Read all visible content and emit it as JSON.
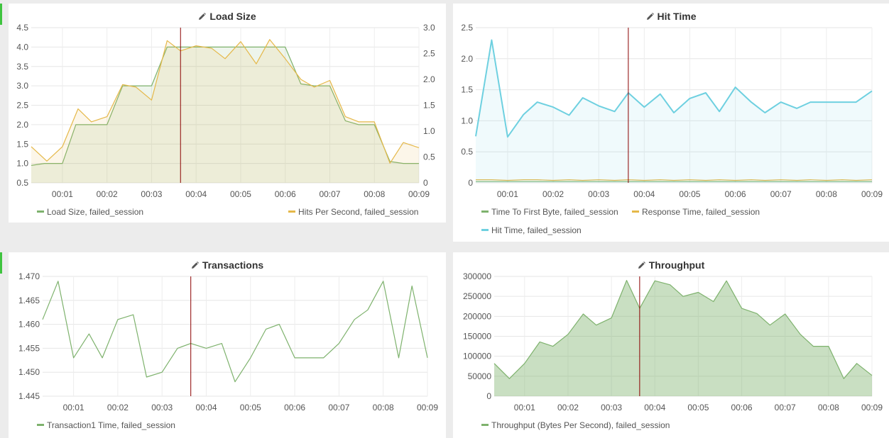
{
  "colors": {
    "green": "#7eb26d",
    "yellow": "#e5b849",
    "cyan": "#6ed0e0",
    "marker": "#8b0000"
  },
  "panels": {
    "load_size": {
      "title": "Load Size",
      "icon": "pencil-icon"
    },
    "hit_time": {
      "title": "Hit Time",
      "icon": "pencil-icon"
    },
    "transactions": {
      "title": "Transactions",
      "icon": "pencil-icon"
    },
    "throughput": {
      "title": "Throughput",
      "icon": "pencil-icon"
    }
  },
  "chart_data": [
    {
      "id": "load_size",
      "type": "area",
      "title": "Load Size",
      "x_ticks": [
        "00:01",
        "00:02",
        "00:03",
        "00:04",
        "00:05",
        "00:06",
        "00:07",
        "00:08",
        "00:09"
      ],
      "x_range": [
        0.3,
        9.0
      ],
      "cursor_x": 3.65,
      "y_left": {
        "range": [
          0.5,
          4.5
        ],
        "ticks": [
          "0.5",
          "1.0",
          "1.5",
          "2.0",
          "2.5",
          "3.0",
          "3.5",
          "4.0",
          "4.5"
        ]
      },
      "y_right": {
        "range": [
          0,
          3.0
        ],
        "ticks": [
          "0",
          "0.5",
          "1.0",
          "1.5",
          "2.0",
          "2.5",
          "3.0"
        ]
      },
      "series": [
        {
          "name": "Load Size, failed_session",
          "axis": "left",
          "color": "green",
          "fill": true,
          "x": [
            0.3,
            0.6,
            1.0,
            1.3,
            1.65,
            2.0,
            2.35,
            2.65,
            3.0,
            3.35,
            3.65,
            4.0,
            4.35,
            4.65,
            5.0,
            5.35,
            5.65,
            6.0,
            6.35,
            6.65,
            7.0,
            7.35,
            7.65,
            8.0,
            8.35,
            8.65,
            9.0
          ],
          "values": [
            0.95,
            1.0,
            1.0,
            2.0,
            2.0,
            2.0,
            3.0,
            3.0,
            3.0,
            4.0,
            4.0,
            4.0,
            4.0,
            4.0,
            4.0,
            4.0,
            4.0,
            4.0,
            3.05,
            3.0,
            3.0,
            2.1,
            2.0,
            2.0,
            1.05,
            1.0,
            1.0
          ]
        },
        {
          "name": "Hits Per Second, failed_session",
          "axis": "right",
          "color": "yellow",
          "fill": true,
          "x": [
            0.3,
            0.65,
            1.0,
            1.35,
            1.65,
            2.0,
            2.35,
            2.65,
            3.0,
            3.35,
            3.65,
            4.0,
            4.35,
            4.65,
            5.0,
            5.35,
            5.65,
            6.0,
            6.35,
            6.65,
            7.0,
            7.35,
            7.65,
            8.0,
            8.35,
            8.65,
            9.0
          ],
          "values": [
            0.7,
            0.42,
            0.7,
            1.43,
            1.18,
            1.28,
            1.9,
            1.85,
            1.6,
            2.75,
            2.55,
            2.65,
            2.6,
            2.4,
            2.73,
            2.3,
            2.77,
            2.4,
            2.0,
            1.85,
            1.98,
            1.28,
            1.18,
            1.18,
            0.38,
            0.78,
            0.68
          ]
        }
      ]
    },
    {
      "id": "hit_time",
      "type": "area",
      "title": "Hit Time",
      "x_ticks": [
        "00:01",
        "00:02",
        "00:03",
        "00:04",
        "00:05",
        "00:06",
        "00:07",
        "00:08",
        "00:09"
      ],
      "x_range": [
        0.3,
        9.0
      ],
      "cursor_x": 3.65,
      "y_left": {
        "range": [
          0,
          2.5
        ],
        "ticks": [
          "0",
          "0.5",
          "1.0",
          "1.5",
          "2.0",
          "2.5"
        ]
      },
      "series": [
        {
          "name": "Time To First Byte, failed_session",
          "axis": "left",
          "color": "green",
          "fill": false,
          "x": [
            0.3,
            9.0
          ],
          "values": [
            0.02,
            0.02
          ]
        },
        {
          "name": "Response Time, failed_session",
          "axis": "left",
          "color": "yellow",
          "fill": false,
          "x": [
            0.3,
            0.65,
            1.0,
            1.35,
            1.65,
            2.0,
            2.35,
            2.65,
            3.0,
            3.35,
            3.65,
            4.0,
            4.35,
            4.65,
            5.0,
            5.35,
            5.65,
            6.0,
            6.35,
            6.65,
            7.0,
            7.35,
            7.65,
            8.0,
            8.35,
            8.65,
            9.0
          ],
          "values": [
            0.05,
            0.05,
            0.04,
            0.05,
            0.05,
            0.04,
            0.05,
            0.04,
            0.05,
            0.04,
            0.05,
            0.04,
            0.05,
            0.04,
            0.05,
            0.04,
            0.05,
            0.04,
            0.05,
            0.04,
            0.05,
            0.04,
            0.05,
            0.04,
            0.05,
            0.04,
            0.05
          ]
        },
        {
          "name": "Hit Time, failed_session",
          "axis": "left",
          "color": "cyan",
          "fill": true,
          "x": [
            0.3,
            0.65,
            1.0,
            1.35,
            1.65,
            2.0,
            2.35,
            2.65,
            3.0,
            3.35,
            3.65,
            4.0,
            4.35,
            4.65,
            5.0,
            5.35,
            5.65,
            6.0,
            6.35,
            6.65,
            7.0,
            7.35,
            7.65,
            8.0,
            8.35,
            8.65,
            9.0
          ],
          "values": [
            0.75,
            2.3,
            0.74,
            1.1,
            1.3,
            1.22,
            1.09,
            1.37,
            1.24,
            1.15,
            1.45,
            1.22,
            1.43,
            1.13,
            1.36,
            1.45,
            1.15,
            1.54,
            1.3,
            1.13,
            1.3,
            1.2,
            1.3,
            1.3,
            1.3,
            1.3,
            1.48
          ]
        }
      ]
    },
    {
      "id": "transactions",
      "type": "line",
      "title": "Transactions",
      "x_ticks": [
        "00:01",
        "00:02",
        "00:03",
        "00:04",
        "00:05",
        "00:06",
        "00:07",
        "00:08",
        "00:09"
      ],
      "x_range": [
        0.3,
        9.0
      ],
      "cursor_x": 3.65,
      "y_left": {
        "range": [
          1.445,
          1.47
        ],
        "ticks": [
          "1.445",
          "1.450",
          "1.455",
          "1.460",
          "1.465",
          "1.470"
        ]
      },
      "series": [
        {
          "name": "Transaction1 Time, failed_session",
          "axis": "left",
          "color": "green",
          "fill": false,
          "x": [
            0.3,
            0.65,
            1.0,
            1.35,
            1.65,
            2.0,
            2.35,
            2.65,
            3.0,
            3.35,
            3.65,
            4.0,
            4.35,
            4.65,
            5.0,
            5.35,
            5.65,
            6.0,
            6.35,
            6.65,
            7.0,
            7.35,
            7.65,
            8.0,
            8.35,
            8.65,
            9.0
          ],
          "values": [
            1.461,
            1.469,
            1.453,
            1.458,
            1.453,
            1.461,
            1.462,
            1.449,
            1.45,
            1.455,
            1.456,
            1.455,
            1.456,
            1.448,
            1.453,
            1.459,
            1.46,
            1.453,
            1.453,
            1.453,
            1.456,
            1.461,
            1.463,
            1.469,
            1.453,
            1.468,
            1.453
          ]
        }
      ]
    },
    {
      "id": "throughput",
      "type": "area",
      "title": "Throughput",
      "x_ticks": [
        "00:01",
        "00:02",
        "00:03",
        "00:04",
        "00:05",
        "00:06",
        "00:07",
        "00:08",
        "00:09"
      ],
      "x_range": [
        0.3,
        9.0
      ],
      "cursor_x": 3.65,
      "y_left": {
        "range": [
          0,
          300000
        ],
        "ticks": [
          "0",
          "50000",
          "100000",
          "150000",
          "200000",
          "250000",
          "300000"
        ]
      },
      "series": [
        {
          "name": "Throughput (Bytes Per Second), failed_session",
          "axis": "left",
          "color": "green",
          "fill": true,
          "x": [
            0.3,
            0.65,
            1.0,
            1.35,
            1.65,
            2.0,
            2.35,
            2.65,
            3.0,
            3.35,
            3.65,
            4.0,
            4.35,
            4.65,
            5.0,
            5.35,
            5.65,
            6.0,
            6.35,
            6.65,
            7.0,
            7.35,
            7.65,
            8.0,
            8.35,
            8.65,
            9.0
          ],
          "values": [
            82000,
            44000,
            82000,
            136000,
            125000,
            155000,
            206000,
            178000,
            196000,
            290000,
            220000,
            289000,
            279000,
            250000,
            260000,
            237000,
            289000,
            220000,
            207000,
            178000,
            206000,
            155000,
            125000,
            125000,
            44000,
            82000,
            52000
          ]
        }
      ]
    }
  ]
}
